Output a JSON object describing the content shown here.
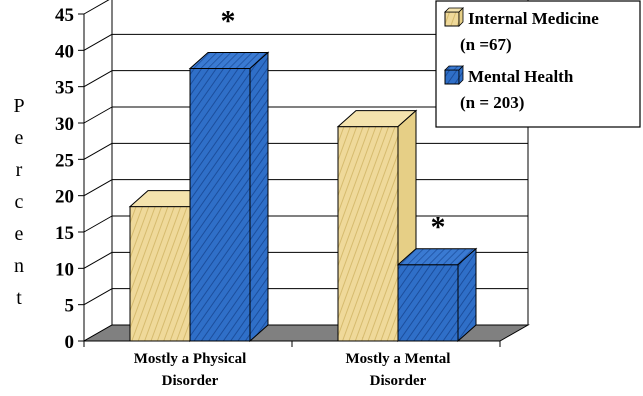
{
  "chart_data": {
    "type": "bar",
    "categories": [
      "Mostly a  Physical\nDisorder",
      "Mostly a Mental\nDisorder"
    ],
    "series": [
      {
        "name": "Internal Medicine\n(n =67)",
        "values": [
          18.5,
          29.5
        ],
        "color": "#efd99a"
      },
      {
        "name": "Mental Health\n(n = 203)",
        "values": [
          37.5,
          10.5
        ],
        "color": "#2f6fc8"
      }
    ],
    "xlabel": "",
    "ylabel": "Percent",
    "ylim": [
      0,
      45
    ],
    "yticks": [
      0,
      5,
      10,
      15,
      20,
      25,
      30,
      35,
      40,
      45
    ],
    "grid": true,
    "legend": "top-right",
    "annotations": [
      {
        "text": "*",
        "category": 0,
        "series": 1
      },
      {
        "text": "*",
        "category": 1,
        "series": 1
      }
    ],
    "floor_color": "#808080",
    "style": "3d"
  }
}
